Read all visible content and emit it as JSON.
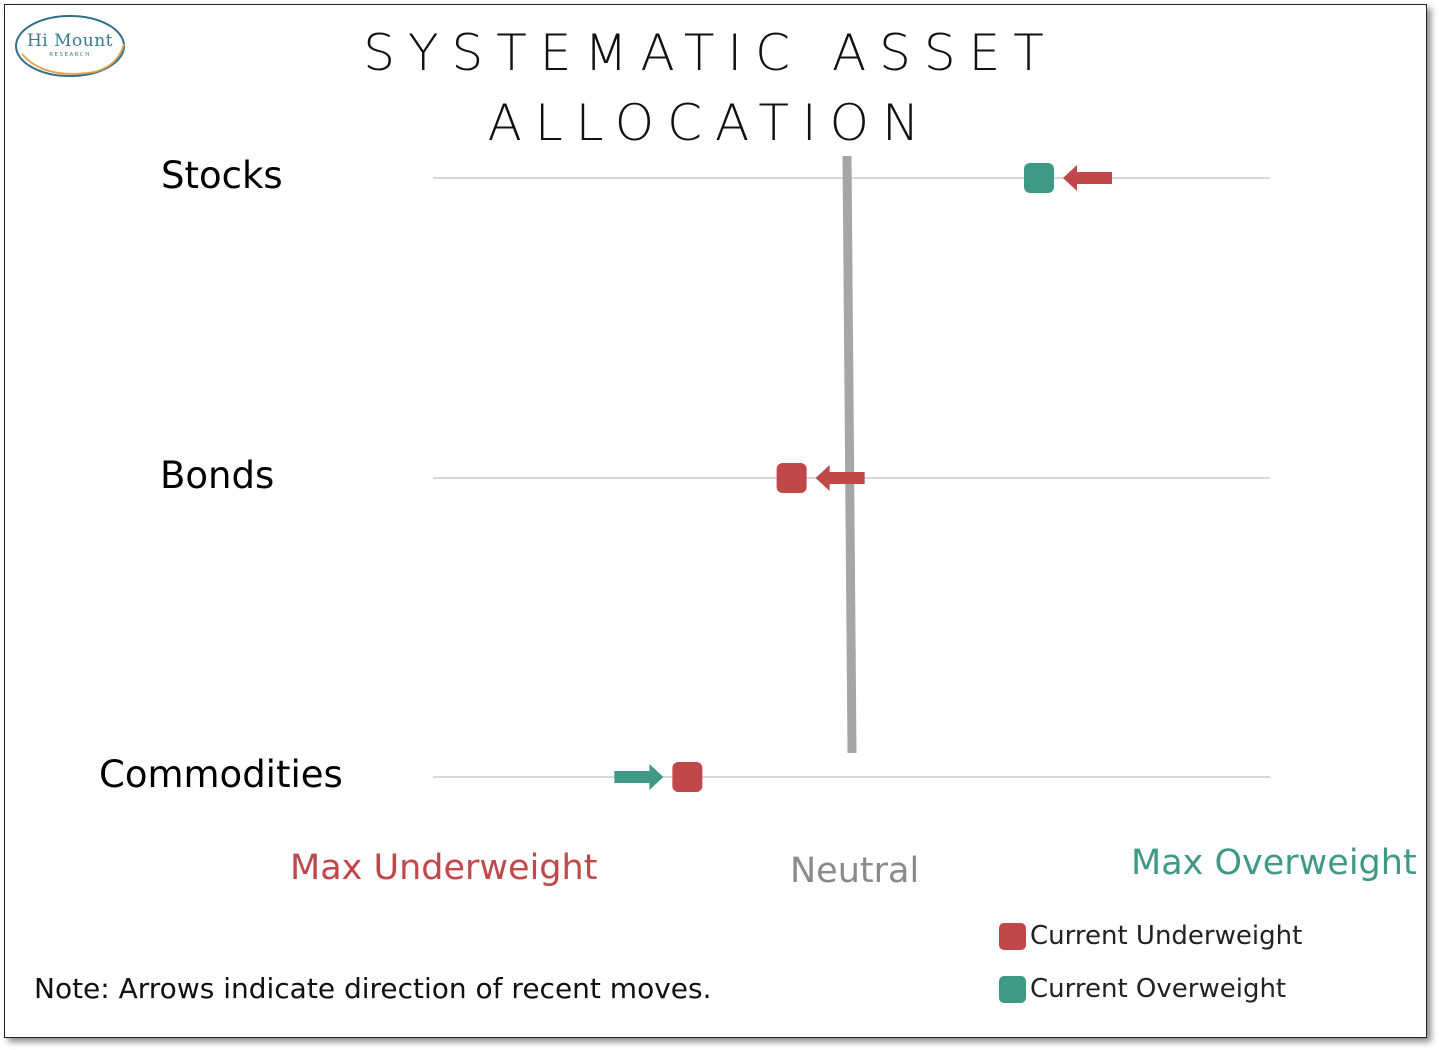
{
  "title_line1": "SYSTEMATIC ASSET",
  "title_line2": "ALLOCATION",
  "logo": {
    "name": "Hi Mount",
    "sub": "RESEARCH"
  },
  "colors": {
    "underweight": "#c0474a",
    "overweight": "#3f9985",
    "neutral": "#a6a6a6",
    "gridline": "#d9d9d9"
  },
  "chart_data": {
    "type": "scatter",
    "scale_labels": {
      "min": "Max Underweight",
      "mid": "Neutral",
      "max": "Max Overweight"
    },
    "scale_range": [
      -1,
      1
    ],
    "rows": [
      {
        "label": "Stocks",
        "value": 0.45,
        "status": "overweight",
        "arrow": "left",
        "arrow_color": "underweight"
      },
      {
        "label": "Bonds",
        "value": -0.14,
        "status": "underweight",
        "arrow": "left",
        "arrow_color": "underweight"
      },
      {
        "label": "Commodities",
        "value": -0.39,
        "status": "underweight",
        "arrow": "right",
        "arrow_color": "overweight"
      }
    ],
    "legend": [
      {
        "label": "Current Underweight",
        "color": "#c0474a"
      },
      {
        "label": "Current Overweight",
        "color": "#3f9985"
      }
    ]
  },
  "note": "Note: Arrows indicate direction of recent moves."
}
